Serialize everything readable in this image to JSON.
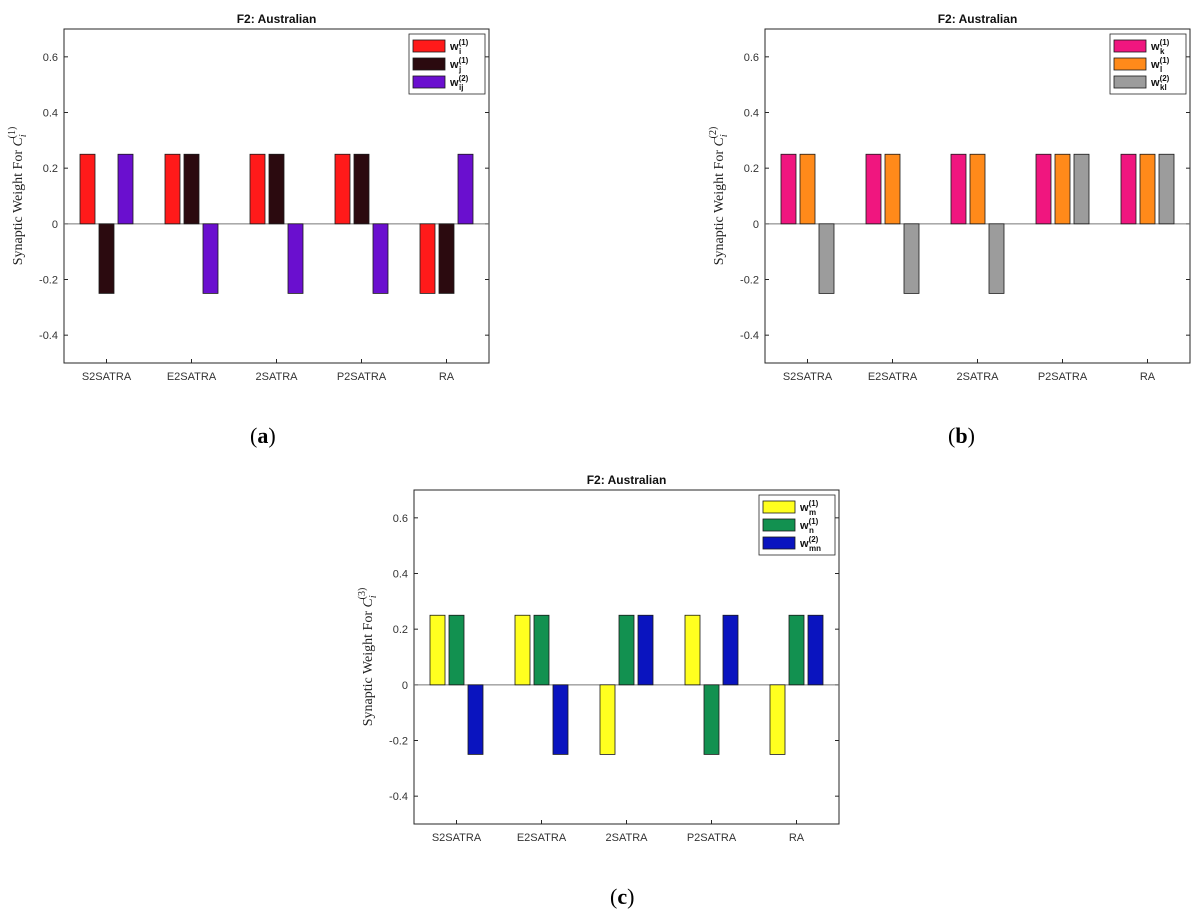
{
  "figure": {
    "panel_labels": [
      "a",
      "b",
      "c"
    ]
  },
  "chart_data": [
    {
      "type": "bar",
      "title": "F2: Australian",
      "ylabel": "Synaptic Weight For C_i^(1)",
      "ylabel_base": "Synaptic Weight For ",
      "ylabel_var": "C",
      "ylabel_sub": "i",
      "ylabel_sup": "(1)",
      "ylim": [
        -0.5,
        0.7
      ],
      "yticks": [
        "-0.4",
        "-0.2",
        "0",
        "0.2",
        "0.4",
        "0.6"
      ],
      "ytick_values": [
        -0.4,
        -0.2,
        0,
        0.2,
        0.4,
        0.6
      ],
      "categories": [
        "S2SATRA",
        "E2SATRA",
        "2SATRA",
        "P2SATRA",
        "RA"
      ],
      "legend_position": "top-right",
      "series": [
        {
          "name": "w_i^(1)",
          "main": "w",
          "sup": "(1)",
          "sub": "i",
          "color": "#ff1a1a",
          "values": [
            0.25,
            0.25,
            0.25,
            0.25,
            -0.25
          ]
        },
        {
          "name": "w_j^(1)",
          "main": "w",
          "sup": "(1)",
          "sub": "j",
          "color": "#2b0a0f",
          "values": [
            -0.25,
            0.25,
            0.25,
            0.25,
            -0.25
          ]
        },
        {
          "name": "w_ij^(2)",
          "main": "w",
          "sup": "(2)",
          "sub": "ij",
          "color": "#6a0fcf",
          "values": [
            0.25,
            -0.25,
            -0.25,
            -0.25,
            0.25
          ]
        }
      ]
    },
    {
      "type": "bar",
      "title": "F2: Australian",
      "ylabel": "Synaptic Weight For C_i^(2)",
      "ylabel_base": "Synaptic Weight For ",
      "ylabel_var": "C",
      "ylabel_sub": "i",
      "ylabel_sup": "(2)",
      "ylim": [
        -0.5,
        0.7
      ],
      "yticks": [
        "-0.4",
        "-0.2",
        "0",
        "0.2",
        "0.4",
        "0.6"
      ],
      "ytick_values": [
        -0.4,
        -0.2,
        0,
        0.2,
        0.4,
        0.6
      ],
      "categories": [
        "S2SATRA",
        "E2SATRA",
        "2SATRA",
        "P2SATRA",
        "RA"
      ],
      "legend_position": "top-right",
      "series": [
        {
          "name": "w_k^(1)",
          "main": "w",
          "sup": "(1)",
          "sub": "k",
          "color": "#f0167f",
          "values": [
            0.25,
            0.25,
            0.25,
            0.25,
            0.25
          ]
        },
        {
          "name": "w_l^(1)",
          "main": "w",
          "sup": "(1)",
          "sub": "l",
          "color": "#ff8a1a",
          "values": [
            0.25,
            0.25,
            0.25,
            0.25,
            0.25
          ]
        },
        {
          "name": "w_kl^(2)",
          "main": "w",
          "sup": "(2)",
          "sub": "kl",
          "color": "#9c9c9c",
          "values": [
            -0.25,
            -0.25,
            -0.25,
            0.25,
            0.25
          ]
        }
      ]
    },
    {
      "type": "bar",
      "title": "F2: Australian",
      "ylabel": "Synaptic Weight For C_i^(3)",
      "ylabel_base": "Synaptic Weight For ",
      "ylabel_var": "C",
      "ylabel_sub": "i",
      "ylabel_sup": "(3)",
      "ylim": [
        -0.5,
        0.7
      ],
      "yticks": [
        "-0.4",
        "-0.2",
        "0",
        "0.2",
        "0.4",
        "0.6"
      ],
      "ytick_values": [
        -0.4,
        -0.2,
        0,
        0.2,
        0.4,
        0.6
      ],
      "categories": [
        "S2SATRA",
        "E2SATRA",
        "2SATRA",
        "P2SATRA",
        "RA"
      ],
      "legend_position": "top-right",
      "series": [
        {
          "name": "w_m^(1)",
          "main": "w",
          "sup": "(1)",
          "sub": "m",
          "color": "#ffff1f",
          "values": [
            0.25,
            0.25,
            -0.25,
            0.25,
            -0.25
          ]
        },
        {
          "name": "w_n^(1)",
          "main": "w",
          "sup": "(1)",
          "sub": "n",
          "color": "#129150",
          "values": [
            0.25,
            0.25,
            0.25,
            -0.25,
            0.25
          ]
        },
        {
          "name": "w_mn^(2)",
          "main": "w",
          "sup": "(2)",
          "sub": "mn",
          "color": "#0a14bf",
          "values": [
            -0.25,
            -0.25,
            0.25,
            0.25,
            0.25
          ]
        }
      ]
    }
  ]
}
